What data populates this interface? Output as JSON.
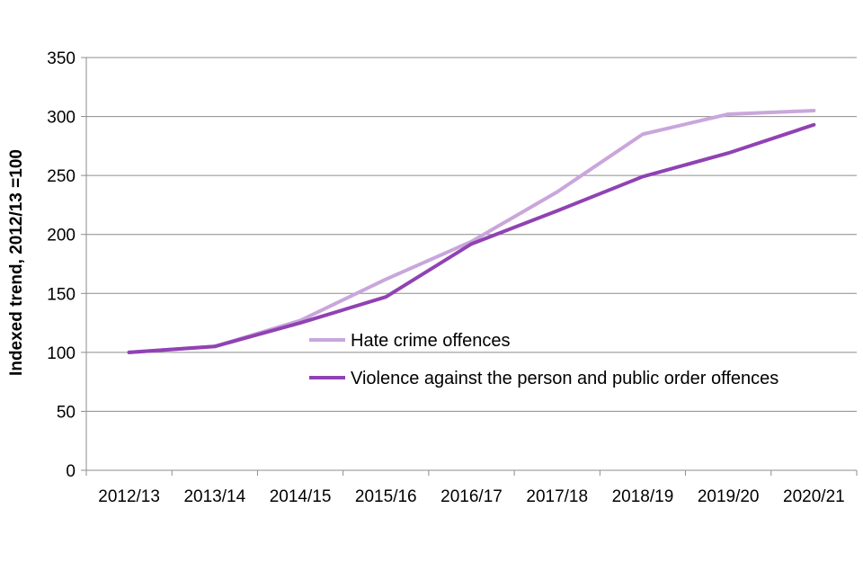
{
  "chart_data": {
    "type": "line",
    "title": "",
    "xlabel": "",
    "ylabel": "Indexed trend, 2012/13 =100",
    "ylim": [
      0,
      350
    ],
    "yticks": [
      0,
      50,
      100,
      150,
      200,
      250,
      300,
      350
    ],
    "grid": true,
    "legend_placement": "center-right",
    "categories": [
      "2012/13",
      "2013/14",
      "2014/15",
      "2015/16",
      "2016/17",
      "2017/18",
      "2018/19",
      "2019/20",
      "2020/21"
    ],
    "series": [
      {
        "name": "Hate crime offences",
        "color": "#c9a6dc",
        "values": [
          100,
          105,
          127,
          162,
          194,
          236,
          285,
          302,
          305
        ]
      },
      {
        "name": "Violence against the person and public order offences",
        "color": "#9042b3",
        "values": [
          100,
          105,
          125,
          147,
          192,
          220,
          249,
          269,
          293
        ]
      }
    ]
  }
}
